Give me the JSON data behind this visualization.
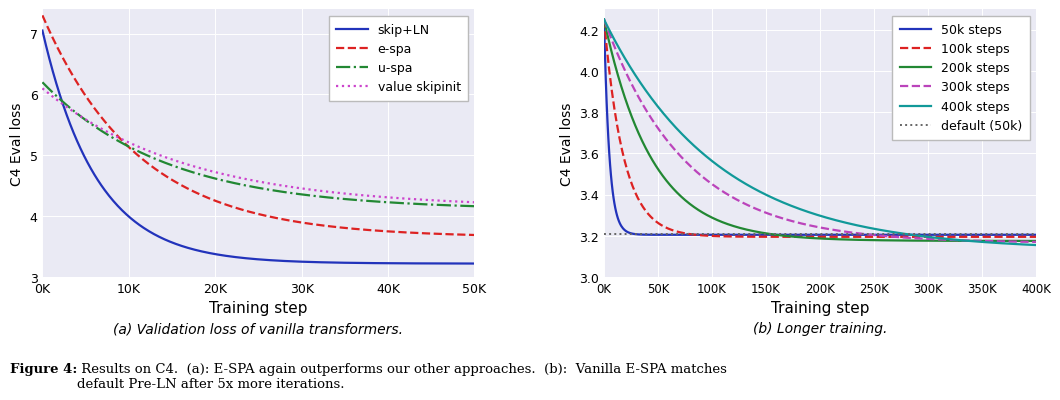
{
  "fig_bg_color": "#ffffff",
  "plot_bg_color": "#eaeaf4",
  "left_ylabel": "C4 Eval loss",
  "left_xlabel": "Training step",
  "left_xlim": [
    0,
    50000
  ],
  "left_ylim": [
    3.0,
    7.4
  ],
  "left_yticks": [
    3,
    4,
    5,
    6,
    7
  ],
  "left_xticks": [
    0,
    10000,
    20000,
    30000,
    40000,
    50000
  ],
  "left_xticklabels": [
    "0K",
    "10K",
    "20K",
    "30K",
    "40K",
    "50K"
  ],
  "right_ylabel": "C4 Eval loss",
  "right_xlabel": "Training step",
  "right_xlim": [
    0,
    400000
  ],
  "right_ylim": [
    3.0,
    4.3
  ],
  "right_yticks": [
    3.0,
    3.2,
    3.4,
    3.6,
    3.8,
    4.0,
    4.2
  ],
  "right_xticks": [
    0,
    50000,
    100000,
    150000,
    200000,
    250000,
    300000,
    350000,
    400000
  ],
  "right_xticklabels": [
    "0K",
    "50K",
    "100K",
    "150K",
    "200K",
    "250K",
    "300K",
    "350K",
    "400K"
  ],
  "left_series": {
    "skip+LN": {
      "color": "#2233bb",
      "linestyle": "-",
      "linewidth": 1.6
    },
    "e-spa": {
      "color": "#dd2222",
      "linestyle": "--",
      "linewidth": 1.6
    },
    "u-spa": {
      "color": "#228833",
      "linestyle": "-.",
      "linewidth": 1.6
    },
    "value skipinit": {
      "color": "#cc44cc",
      "linestyle": ":",
      "linewidth": 1.6
    }
  },
  "right_series": {
    "50k steps": {
      "color": "#2233bb",
      "linestyle": "-",
      "linewidth": 1.6
    },
    "100k steps": {
      "color": "#dd2222",
      "linestyle": "--",
      "linewidth": 1.6
    },
    "200k steps": {
      "color": "#228833",
      "linestyle": "-",
      "linewidth": 1.6
    },
    "300k steps": {
      "color": "#bb44bb",
      "linestyle": "--",
      "linewidth": 1.6
    },
    "400k steps": {
      "color": "#119999",
      "linestyle": "-",
      "linewidth": 1.6
    },
    "default (50k)": {
      "color": "#666666",
      "linestyle": ":",
      "linewidth": 1.4
    }
  },
  "left_subtitle": "(a) Validation loss of vanilla transformers.",
  "right_subtitle": "(b) Longer training.",
  "caption_bold": "Figure 4:",
  "caption_normal": " Results on C4.  (a): E-SPA again outperforms our other approaches.  (b):  Vanilla E-SPA matches\ndefault Pre-LN after 5x more iterations."
}
